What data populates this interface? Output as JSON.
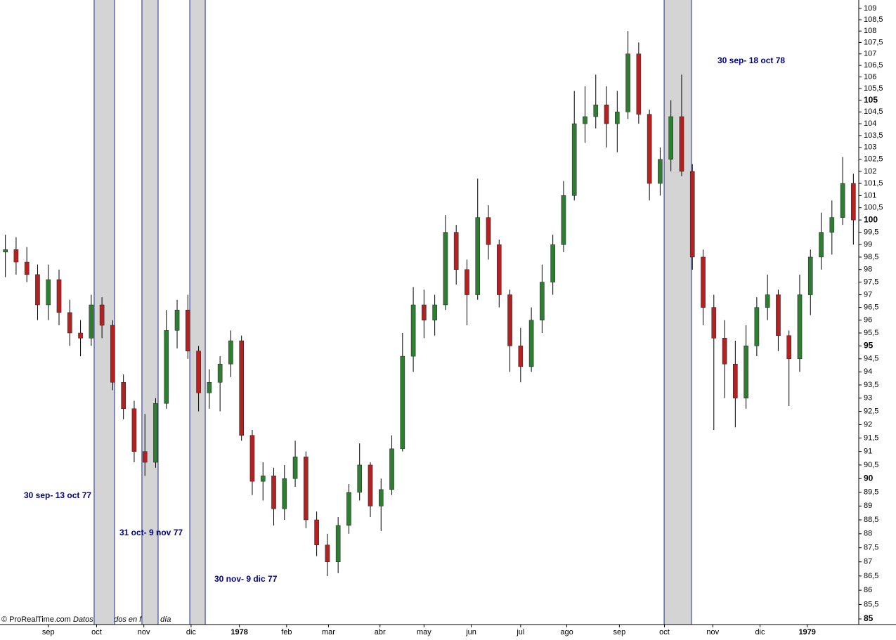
{
  "chart_data": {
    "type": "candlestick",
    "log_scale": true,
    "up_color": "#2e7d32",
    "down_color": "#b22222",
    "wick_color": "#000000",
    "band_color": "#d4d4d4",
    "band_edge_color": "#1f2a9c",
    "annotation_color": "#000080",
    "xlim": [
      0,
      80
    ],
    "xticks": [
      {
        "value": 4.5,
        "label": "sep"
      },
      {
        "value": 9.0,
        "label": "oct"
      },
      {
        "value": 13.4,
        "label": "nov"
      },
      {
        "value": 17.8,
        "label": "dic"
      },
      {
        "value": 22.3,
        "label": "1978"
      },
      {
        "value": 26.7,
        "label": "feb"
      },
      {
        "value": 30.6,
        "label": "mar"
      },
      {
        "value": 35.4,
        "label": "abr"
      },
      {
        "value": 39.5,
        "label": "may"
      },
      {
        "value": 43.9,
        "label": "jun"
      },
      {
        "value": 48.5,
        "label": "jul"
      },
      {
        "value": 52.8,
        "label": "ago"
      },
      {
        "value": 57.7,
        "label": "sep"
      },
      {
        "value": 61.9,
        "label": "oct"
      },
      {
        "value": 66.4,
        "label": "nov"
      },
      {
        "value": 70.8,
        "label": "dic"
      },
      {
        "value": 75.2,
        "label": "1979"
      }
    ],
    "ylim": [
      85,
      109
    ],
    "yticks": [
      85,
      {
        "value": 85.5,
        "label": "85,5"
      },
      86,
      {
        "value": 86.5,
        "label": "86,5"
      },
      87,
      {
        "value": 87.5,
        "label": "87,5"
      },
      88,
      {
        "value": 88.5,
        "label": "88,5"
      },
      89,
      {
        "value": 89.5,
        "label": "89,5"
      },
      90,
      {
        "value": 90.5,
        "label": "90,5"
      },
      91,
      {
        "value": 91.5,
        "label": "91,5"
      },
      92,
      {
        "value": 92.5,
        "label": "92,5"
      },
      93,
      {
        "value": 93.5,
        "label": "93,5"
      },
      94,
      {
        "value": 94.5,
        "label": "94,5"
      },
      95,
      {
        "value": 95.5,
        "label": "95,5"
      },
      96,
      {
        "value": 96.5,
        "label": "96,5"
      },
      97,
      {
        "value": 97.5,
        "label": "97,5"
      },
      98,
      {
        "value": 98.5,
        "label": "98,5"
      },
      99,
      {
        "value": 99.5,
        "label": "99,5"
      },
      100,
      {
        "value": 100.5,
        "label": "100,5"
      },
      101,
      {
        "value": 101.5,
        "label": "101,5"
      },
      102,
      {
        "value": 102.5,
        "label": "102,5"
      },
      103,
      {
        "value": 103.5,
        "label": "103,5"
      },
      104,
      {
        "value": 104.5,
        "label": "104,5"
      },
      105,
      {
        "value": 105.5,
        "label": "105,5"
      },
      106,
      {
        "value": 106.5,
        "label": "106,5"
      },
      107,
      {
        "value": 107.5,
        "label": "107,5"
      },
      108,
      {
        "value": 108.5,
        "label": "108,5"
      },
      109
    ],
    "shaded_periods": [
      {
        "start": 8.77,
        "end": 10.67,
        "label": "30 sep- 13 oct 77"
      },
      {
        "start": 13.22,
        "end": 14.73,
        "label": "31 oct- 9 nov 77"
      },
      {
        "start": 17.68,
        "end": 19.12,
        "label": "30 nov- 9 dic 77"
      },
      {
        "start": 61.87,
        "end": 64.42,
        "label": "30 sep- 18 oct 78"
      }
    ],
    "source": "© ProRealTime.com",
    "source_note": "Datos recibidos en fin de día",
    "open": [
      98.7,
      98.8,
      98.3,
      97.8,
      96.6,
      97.6,
      96.3,
      95.5,
      95.3,
      96.6,
      95.8,
      93.6,
      92.6,
      91.0,
      90.6,
      92.8,
      95.6,
      96.4,
      94.8,
      93.2,
      93.6,
      94.3,
      95.2,
      91.6,
      89.9,
      90.1,
      88.9,
      90.0,
      90.8,
      88.5,
      87.6,
      87.0,
      88.3,
      89.5,
      90.5,
      89.0,
      89.6,
      91.1,
      94.6,
      96.6,
      96.0,
      96.6,
      99.5,
      98.0,
      97.0,
      100.1,
      99.0,
      97.0,
      95.0,
      94.2,
      96.0,
      97.5,
      99.0,
      101.0,
      104.0,
      104.3,
      104.8,
      104.0,
      104.5,
      107.0,
      104.4,
      101.5,
      102.5,
      104.3,
      102.0,
      98.5,
      96.5,
      95.3,
      94.3,
      93.0,
      95.0,
      96.5,
      97.0,
      95.4,
      94.5,
      97.0,
      98.5,
      99.5,
      100.1,
      101.5
    ],
    "high": [
      99.4,
      99.3,
      98.9,
      98.2,
      98.2,
      98.0,
      96.8,
      96.0,
      97.0,
      96.9,
      96.0,
      93.9,
      92.9,
      92.4,
      93.0,
      96.4,
      96.8,
      97.0,
      95.0,
      94.1,
      94.6,
      95.6,
      95.4,
      91.8,
      90.6,
      90.4,
      90.5,
      91.4,
      91.0,
      88.8,
      88.0,
      88.6,
      89.8,
      91.3,
      90.6,
      90.0,
      91.6,
      95.5,
      97.3,
      97.2,
      97.0,
      100.2,
      99.8,
      98.4,
      101.7,
      100.6,
      99.2,
      97.2,
      95.7,
      96.5,
      98.2,
      99.4,
      101.6,
      105.4,
      105.6,
      106.1,
      105.6,
      105.4,
      108.0,
      107.5,
      104.6,
      103.0,
      105.0,
      106.1,
      102.3,
      98.8,
      97.0,
      96.0,
      95.2,
      95.8,
      96.9,
      97.8,
      97.2,
      95.6,
      97.8,
      98.8,
      100.3,
      100.8,
      102.6,
      101.9
    ],
    "low": [
      97.7,
      97.8,
      97.5,
      96.0,
      96.0,
      95.8,
      95.0,
      94.6,
      95.0,
      95.3,
      93.3,
      92.2,
      90.6,
      90.1,
      90.4,
      92.6,
      94.9,
      94.5,
      92.5,
      92.6,
      92.5,
      93.8,
      91.4,
      89.4,
      89.2,
      88.3,
      88.5,
      89.7,
      88.2,
      87.2,
      86.5,
      86.6,
      88.0,
      89.2,
      88.6,
      88.1,
      89.4,
      91.0,
      94.0,
      95.3,
      95.4,
      96.4,
      97.4,
      95.8,
      96.8,
      98.4,
      96.5,
      94.0,
      93.6,
      94.0,
      95.5,
      97.0,
      98.7,
      100.8,
      103.2,
      103.8,
      103.0,
      102.8,
      104.2,
      104.0,
      100.8,
      101.0,
      102.0,
      101.8,
      98.0,
      95.8,
      91.8,
      93.0,
      91.9,
      92.6,
      94.6,
      96.0,
      94.8,
      92.7,
      94.0,
      96.2,
      98.0,
      98.6,
      99.8,
      99.0
    ],
    "close": [
      98.8,
      98.3,
      97.8,
      96.6,
      97.6,
      96.3,
      95.5,
      95.3,
      96.6,
      95.8,
      93.6,
      92.6,
      91.0,
      90.6,
      92.8,
      95.6,
      96.4,
      94.8,
      93.2,
      93.6,
      94.3,
      95.2,
      91.6,
      89.9,
      90.1,
      88.9,
      90.0,
      90.8,
      88.5,
      87.6,
      87.0,
      88.3,
      89.5,
      90.5,
      89.0,
      89.6,
      91.1,
      94.6,
      96.6,
      96.0,
      96.6,
      99.5,
      98.0,
      97.0,
      100.1,
      99.0,
      97.0,
      95.0,
      94.2,
      96.0,
      97.5,
      99.0,
      101.0,
      104.0,
      104.3,
      104.8,
      104.0,
      104.5,
      107.0,
      104.4,
      101.5,
      102.5,
      104.3,
      102.0,
      98.5,
      96.5,
      95.3,
      94.3,
      93.0,
      95.0,
      96.5,
      97.0,
      95.4,
      94.5,
      97.0,
      98.5,
      99.5,
      100.1,
      101.5,
      100.0
    ]
  }
}
